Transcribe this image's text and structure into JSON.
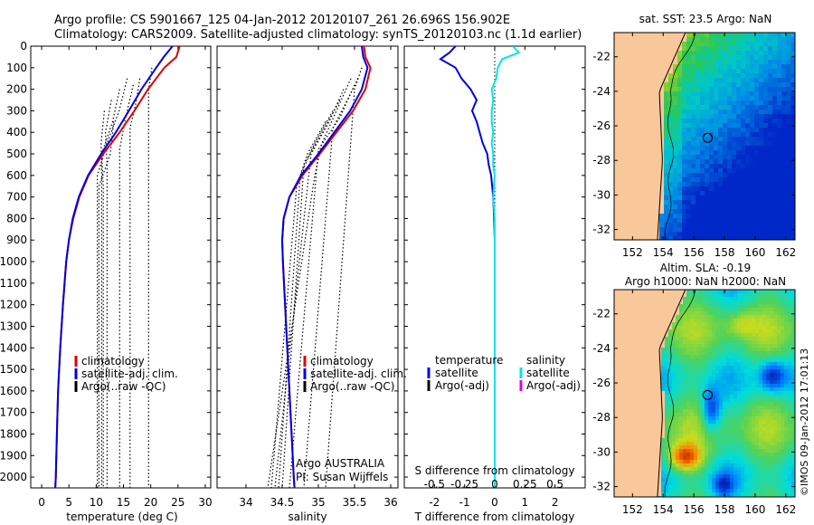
{
  "title_line1": "Argo profile: CS 5901667_125 04-Jan-2012 20120107_261 26.696S 156.902E",
  "title_line2": "Climatology: CARS2009. Satellite-adjusted climatology: synTS_20120103.nc (1.1d earlier)",
  "colors": {
    "red": "#e00000",
    "blue": "#0000e0",
    "cyan": "#00e5e5",
    "magenta": "#e000e0",
    "black": "#000000",
    "land": "#f8c79a"
  },
  "chart_data": [
    {
      "type": "line",
      "panel": "temperature",
      "xlabel": "temperature (deg C)",
      "ylabel": "",
      "xlim": [
        -2,
        31
      ],
      "ylim": [
        2050,
        0
      ],
      "xticks": [
        0,
        5,
        10,
        15,
        20,
        25,
        30
      ],
      "yticks": [
        0,
        100,
        200,
        300,
        400,
        500,
        600,
        700,
        800,
        900,
        1000,
        1100,
        1200,
        1300,
        1400,
        1500,
        1600,
        1700,
        1800,
        1900,
        2000
      ],
      "legend": [
        "climatology",
        "satellite-adj. clim.",
        "Argo(..raw -QC)"
      ],
      "series": [
        {
          "name": "climatology",
          "color": "red",
          "depth": [
            0,
            50,
            100,
            200,
            300,
            400,
            500,
            600,
            700,
            800,
            900,
            1000,
            1200,
            1400,
            1600,
            1800,
            2000,
            2050
          ],
          "values": [
            25.3,
            24.7,
            22.5,
            19.5,
            17.0,
            14.3,
            11.3,
            8.6,
            6.9,
            5.8,
            5.0,
            4.5,
            3.9,
            3.4,
            3.0,
            2.8,
            2.6,
            2.5
          ]
        },
        {
          "name": "satellite-adj. clim.",
          "color": "blue",
          "depth": [
            0,
            50,
            100,
            200,
            300,
            400,
            500,
            600,
            700,
            800,
            900,
            1000,
            1200,
            1400,
            1600,
            1800,
            2000,
            2050
          ],
          "values": [
            24.0,
            22.4,
            21.0,
            18.3,
            16.0,
            13.6,
            10.9,
            8.5,
            6.8,
            5.7,
            5.0,
            4.5,
            3.9,
            3.4,
            3.0,
            2.8,
            2.6,
            2.5
          ]
        },
        {
          "name": "Argo(..raw -QC)",
          "color": "black",
          "style": "dotted",
          "profiles": [
            {
              "depth": [
                150,
                300,
                450,
                600,
                2050
              ],
              "values": [
                15.7,
                14.2,
                12.0,
                10.2,
                10.2
              ]
            },
            {
              "depth": [
                200,
                350,
                500,
                650,
                2050
              ],
              "values": [
                14.3,
                13.0,
                11.0,
                11.3,
                11.3
              ]
            },
            {
              "depth": [
                250,
                400,
                550,
                2050
              ],
              "values": [
                12.8,
                11.7,
                12.0,
                12.0
              ]
            },
            {
              "depth": [
                300,
                450,
                600,
                2050
              ],
              "values": [
                11.5,
                10.9,
                11.0,
                11.0
              ]
            },
            {
              "depth": [
                180,
                330,
                480,
                2050
              ],
              "values": [
                16.8,
                15.4,
                14.3,
                14.3
              ]
            },
            {
              "depth": [
                150,
                250,
                380,
                2050
              ],
              "values": [
                18.0,
                17.4,
                16.2,
                16.2
              ]
            },
            {
              "depth": [
                100,
                200,
                2050
              ],
              "values": [
                20.2,
                19.6,
                19.6
              ]
            },
            {
              "depth": [
                350,
                500,
                650,
                2050
              ],
              "values": [
                13.2,
                12.6,
                10.5,
                10.5
              ]
            }
          ]
        }
      ]
    },
    {
      "type": "line",
      "panel": "salinity",
      "xlabel": "salinity",
      "xlim": [
        33.6,
        36.1
      ],
      "ylim": [
        2050,
        0
      ],
      "xticks": [
        34,
        34.5,
        35,
        35.5,
        36
      ],
      "legend": [
        "climatology",
        "satellite-adj. clim.",
        "Argo(..raw -QC)"
      ],
      "annotation": [
        "Argo AUSTRALIA",
        "PI: Susan Wijffels"
      ],
      "series": [
        {
          "name": "climatology",
          "color": "red",
          "depth": [
            0,
            50,
            100,
            200,
            300,
            400,
            500,
            600,
            700,
            800,
            900,
            1000,
            1200,
            1400,
            1600,
            1800,
            2000,
            2050
          ],
          "values": [
            35.63,
            35.65,
            35.72,
            35.65,
            35.48,
            35.25,
            35.02,
            34.78,
            34.6,
            34.52,
            34.5,
            34.51,
            34.54,
            34.57,
            34.6,
            34.63,
            34.66,
            34.67
          ]
        },
        {
          "name": "satellite-adj. clim.",
          "color": "blue",
          "depth": [
            0,
            50,
            100,
            200,
            300,
            400,
            500,
            600,
            700,
            800,
            900,
            1000,
            1200,
            1400,
            1600,
            1800,
            2000,
            2050
          ],
          "values": [
            35.6,
            35.62,
            35.68,
            35.6,
            35.44,
            35.22,
            35.0,
            34.76,
            34.6,
            34.52,
            34.5,
            34.51,
            34.54,
            34.57,
            34.6,
            34.63,
            34.66,
            34.67
          ]
        },
        {
          "name": "Argo(..raw -QC)",
          "color": "black",
          "style": "dotted",
          "profiles": [
            {
              "depth": [
                150,
                300,
                450,
                600,
                2050
              ],
              "values": [
                35.45,
                35.25,
                35.05,
                34.95,
                34.3
              ]
            },
            {
              "depth": [
                200,
                350,
                500,
                650,
                2050
              ],
              "values": [
                35.35,
                35.15,
                34.9,
                34.85,
                34.4
              ]
            },
            {
              "depth": [
                250,
                400,
                550,
                2050
              ],
              "values": [
                35.3,
                35.05,
                34.8,
                34.5
              ]
            },
            {
              "depth": [
                180,
                330,
                480,
                2050
              ],
              "values": [
                35.5,
                35.3,
                35.0,
                34.6
              ]
            },
            {
              "depth": [
                150,
                250,
                380,
                2050
              ],
              "values": [
                35.55,
                35.4,
                35.2,
                34.8
              ]
            },
            {
              "depth": [
                100,
                200,
                2050
              ],
              "values": [
                35.6,
                35.5,
                35.1
              ]
            },
            {
              "depth": [
                300,
                450,
                600,
                2050
              ],
              "values": [
                35.2,
                34.95,
                34.75,
                34.45
              ]
            },
            {
              "depth": [
                350,
                500,
                650,
                2050
              ],
              "values": [
                35.1,
                34.85,
                34.7,
                34.35
              ]
            }
          ]
        }
      ]
    },
    {
      "type": "line",
      "panel": "difference",
      "xlabel_bottom": "T difference from climatology",
      "xlabel_top": "S difference from climatology",
      "xlim_T": [
        -3,
        3
      ],
      "xticks_T": [
        -2,
        -1,
        0,
        1,
        2
      ],
      "xticks_S_labels": [
        "-0.5",
        "-0.25",
        "0",
        "0.25",
        "0.5"
      ],
      "xticks_S_positions_T": [
        -2,
        -1,
        0,
        1,
        2
      ],
      "ylim": [
        2050,
        0
      ],
      "legend_left_title": "temperature",
      "legend_right_title": "salinity",
      "legend": [
        "satellite",
        "Argo(-adj)",
        "satellite",
        "Argo(-adj)"
      ],
      "series": [
        {
          "name": "temperature satellite",
          "color": "blue",
          "depth": [
            0,
            30,
            60,
            100,
            150,
            200,
            250,
            300,
            350,
            400,
            450,
            500,
            550,
            600,
            700,
            800,
            900,
            1000,
            1200,
            1400,
            1600,
            1800,
            2000,
            2050
          ],
          "values": [
            -1.3,
            -1.5,
            -1.8,
            -1.3,
            -1.1,
            -0.8,
            -0.6,
            -0.75,
            -0.6,
            -0.5,
            -0.4,
            -0.25,
            -0.2,
            -0.12,
            -0.05,
            -0.02,
            0,
            0,
            0,
            0,
            0,
            0,
            0,
            0
          ]
        },
        {
          "name": "salinity satellite",
          "color": "cyan",
          "depth": [
            0,
            30,
            60,
            100,
            150,
            200,
            250,
            300,
            350,
            400,
            450,
            500,
            550,
            600,
            700,
            800,
            900,
            1000,
            1200,
            1400,
            1600,
            1800,
            2000,
            2050
          ],
          "values": [
            0.6,
            0.8,
            0.25,
            0.1,
            0.05,
            -0.1,
            -0.05,
            -0.1,
            -0.1,
            -0.05,
            -0.1,
            -0.05,
            -0.05,
            0,
            -0.05,
            0,
            0,
            0,
            0,
            0,
            0,
            0,
            0,
            0
          ]
        }
      ]
    },
    {
      "type": "heatmap",
      "panel": "SST map",
      "title": "sat. SST: 23.5 Argo: NaN",
      "xticks": [
        152,
        154,
        156,
        158,
        160,
        162
      ],
      "yticks": [
        -22,
        -24,
        -26,
        -28,
        -30,
        -32
      ],
      "xlim": [
        150.8,
        162.6
      ],
      "ylim": [
        -32.6,
        -20.6
      ],
      "argo_position": [
        156.902,
        -26.696
      ]
    },
    {
      "type": "heatmap",
      "panel": "SLA map",
      "title_line1": "Altim. SLA: -0.19",
      "title_line2": "Argo h1000: NaN h2000: NaN",
      "xticks": [
        152,
        154,
        156,
        158,
        160,
        162
      ],
      "yticks": [
        -22,
        -24,
        -26,
        -28,
        -30,
        -32
      ],
      "xlim": [
        150.8,
        162.6
      ],
      "ylim": [
        -32.6,
        -20.6
      ],
      "argo_position": [
        156.902,
        -26.696
      ]
    }
  ],
  "watermark": "©IMOS 09-Jan-2012 17:01:13"
}
